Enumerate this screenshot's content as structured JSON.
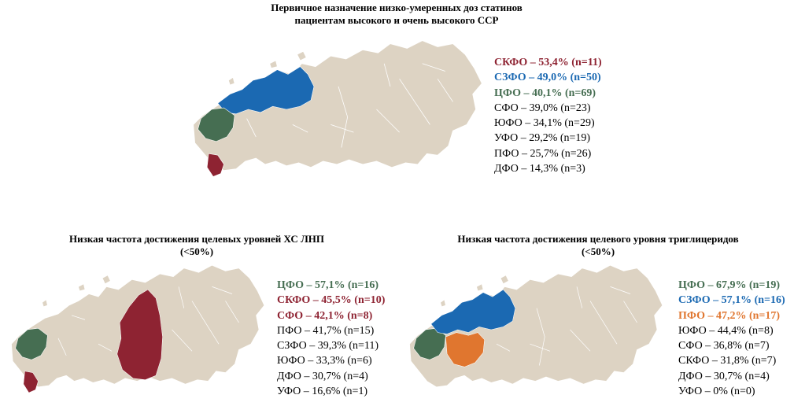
{
  "colors": {
    "base": "#ddd3c3",
    "red": "#8e2332",
    "blue": "#1b69b2",
    "green": "#466e52",
    "orange": "#e0762f",
    "text": "#000000"
  },
  "panels": [
    {
      "id": "statins",
      "title_lines": [
        "Первичное назначение низко-умеренных доз статинов",
        "пациентам высокого и очень высокого ССР"
      ],
      "highlights": {
        "СКФО": "red",
        "СЗФО": "blue",
        "ЦФО": "green"
      },
      "legend": [
        {
          "text": "СКФО – 53,4% (n=11)",
          "color": "red",
          "bold": true
        },
        {
          "text": "СЗФО – 49,0% (n=50)",
          "color": "blue",
          "bold": true
        },
        {
          "text": "ЦФО – 40,1% (n=69)",
          "color": "green",
          "bold": true
        },
        {
          "text": "СФО – 39,0% (n=23)",
          "color": "text",
          "bold": false
        },
        {
          "text": "ЮФО – 34,1% (n=29)",
          "color": "text",
          "bold": false
        },
        {
          "text": "УФО – 29,2% (n=19)",
          "color": "text",
          "bold": false
        },
        {
          "text": "ПФО – 25,7% (n=26)",
          "color": "text",
          "bold": false
        },
        {
          "text": "ДФО – 14,3% (n=3)",
          "color": "text",
          "bold": false
        }
      ]
    },
    {
      "id": "ldl",
      "title_lines": [
        "Низкая частота достижения целевых уровней ХС ЛНП",
        "(<50%)"
      ],
      "highlights": {
        "ЦФО": "green",
        "СКФО": "red",
        "СФО": "red"
      },
      "legend": [
        {
          "text": "ЦФО – 57,1% (n=16)",
          "color": "green",
          "bold": true
        },
        {
          "text": "СКФО – 45,5% (n=10)",
          "color": "red",
          "bold": true
        },
        {
          "text": "СФО – 42,1% (n=8)",
          "color": "red",
          "bold": true
        },
        {
          "text": "ПФО – 41,7% (n=15)",
          "color": "text",
          "bold": false
        },
        {
          "text": "СЗФО – 39,3% (n=11)",
          "color": "text",
          "bold": false
        },
        {
          "text": "ЮФО – 33,3% (n=6)",
          "color": "text",
          "bold": false
        },
        {
          "text": "ДФО – 30,7% (n=4)",
          "color": "text",
          "bold": false
        },
        {
          "text": "УФО – 16,6% (n=1)",
          "color": "text",
          "bold": false
        }
      ]
    },
    {
      "id": "tg",
      "title_lines": [
        "Низкая частота достижения целевого уровня триглицеридов",
        "(<50%)"
      ],
      "highlights": {
        "ЦФО": "green",
        "СЗФО": "blue",
        "ПФО": "orange"
      },
      "legend": [
        {
          "text": "ЦФО – 67,9% (n=19)",
          "color": "green",
          "bold": true
        },
        {
          "text": "СЗФО – 57,1% (n=16)",
          "color": "blue",
          "bold": true
        },
        {
          "text": "ПФО – 47,2% (n=17)",
          "color": "orange",
          "bold": true
        },
        {
          "text": "ЮФО – 44,4% (n=8)",
          "color": "text",
          "bold": false
        },
        {
          "text": "СФО – 36,8% (n=7)",
          "color": "text",
          "bold": false
        },
        {
          "text": "СКФО – 31,8% (n=7)",
          "color": "text",
          "bold": false
        },
        {
          "text": "ДФО – 30,7% (n=4)",
          "color": "text",
          "bold": false
        },
        {
          "text": "УФО – 0% (n=0)",
          "color": "text",
          "bold": false
        }
      ]
    }
  ]
}
